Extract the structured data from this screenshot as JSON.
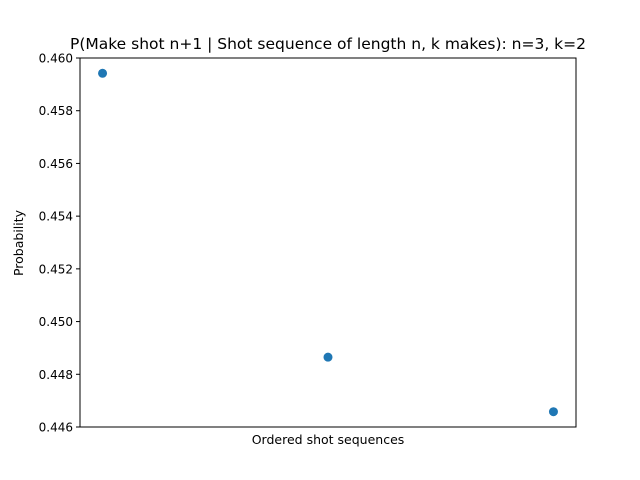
{
  "chart_data": {
    "type": "scatter",
    "title": "P(Make shot n+1 | Shot sequence of length n, k makes): n=3, k=2",
    "xlabel": "Ordered shot sequences",
    "ylabel": "Probability",
    "x": [
      0,
      1,
      2
    ],
    "y": [
      0.45942,
      0.44865,
      0.44658
    ],
    "ylim": [
      0.446,
      0.46
    ],
    "yticks": [
      "0.446",
      "0.448",
      "0.450",
      "0.452",
      "0.454",
      "0.456",
      "0.458",
      "0.460"
    ],
    "xticks": [],
    "grid": false,
    "colors": {
      "point": "#1f77b4"
    }
  }
}
